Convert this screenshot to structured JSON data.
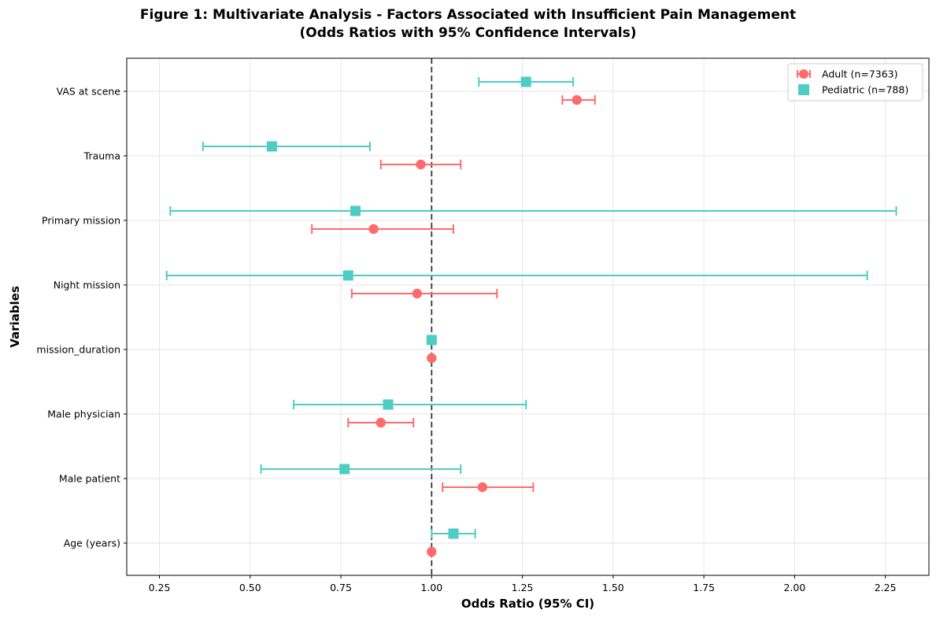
{
  "chart_data": {
    "type": "scatter",
    "title": "Figure 1: Multivariate Analysis - Factors Associated with Insufficient Pain Management",
    "subtitle": "(Odds Ratios with 95% Confidence Intervals)",
    "xlabel": "Odds Ratio (95% CI)",
    "ylabel": "Variables",
    "xlim": [
      0.16,
      2.37
    ],
    "xticks": [
      "0.25",
      "0.50",
      "0.75",
      "1.00",
      "1.25",
      "1.50",
      "1.75",
      "2.00",
      "2.25"
    ],
    "categories": [
      "Age (years)",
      "Male patient",
      "Male physician",
      "mission_duration",
      "Night mission",
      "Primary mission",
      "Trauma",
      "VAS at scene"
    ],
    "reference_line": 1.0,
    "grid": true,
    "legend_position": "top-right",
    "series": [
      {
        "name": "Adult (n=7363)",
        "marker": "circle",
        "color": "#FF6B6B",
        "points": [
          {
            "category": "Age (years)",
            "or": 1.0,
            "ci_low": 0.995,
            "ci_high": 1.005
          },
          {
            "category": "Male patient",
            "or": 1.14,
            "ci_low": 1.03,
            "ci_high": 1.28
          },
          {
            "category": "Male physician",
            "or": 0.86,
            "ci_low": 0.77,
            "ci_high": 0.95
          },
          {
            "category": "mission_duration",
            "or": 1.0,
            "ci_low": 0.999,
            "ci_high": 1.001
          },
          {
            "category": "Night mission",
            "or": 0.96,
            "ci_low": 0.78,
            "ci_high": 1.18
          },
          {
            "category": "Primary mission",
            "or": 0.84,
            "ci_low": 0.67,
            "ci_high": 1.06
          },
          {
            "category": "Trauma",
            "or": 0.97,
            "ci_low": 0.86,
            "ci_high": 1.08
          },
          {
            "category": "VAS at scene",
            "or": 1.4,
            "ci_low": 1.36,
            "ci_high": 1.45
          }
        ]
      },
      {
        "name": "Pediatric (n=788)",
        "marker": "square",
        "color": "#4ECDC4",
        "points": [
          {
            "category": "Age (years)",
            "or": 1.06,
            "ci_low": 1.0,
            "ci_high": 1.12
          },
          {
            "category": "Male patient",
            "or": 0.76,
            "ci_low": 0.53,
            "ci_high": 1.08
          },
          {
            "category": "Male physician",
            "or": 0.88,
            "ci_low": 0.62,
            "ci_high": 1.26
          },
          {
            "category": "mission_duration",
            "or": 1.0,
            "ci_low": 0.998,
            "ci_high": 1.002
          },
          {
            "category": "Night mission",
            "or": 0.77,
            "ci_low": 0.27,
            "ci_high": 2.2
          },
          {
            "category": "Primary mission",
            "or": 0.79,
            "ci_low": 0.28,
            "ci_high": 2.28
          },
          {
            "category": "Trauma",
            "or": 0.56,
            "ci_low": 0.37,
            "ci_high": 0.83
          },
          {
            "category": "VAS at scene",
            "or": 1.26,
            "ci_low": 1.13,
            "ci_high": 1.39
          }
        ]
      }
    ]
  }
}
